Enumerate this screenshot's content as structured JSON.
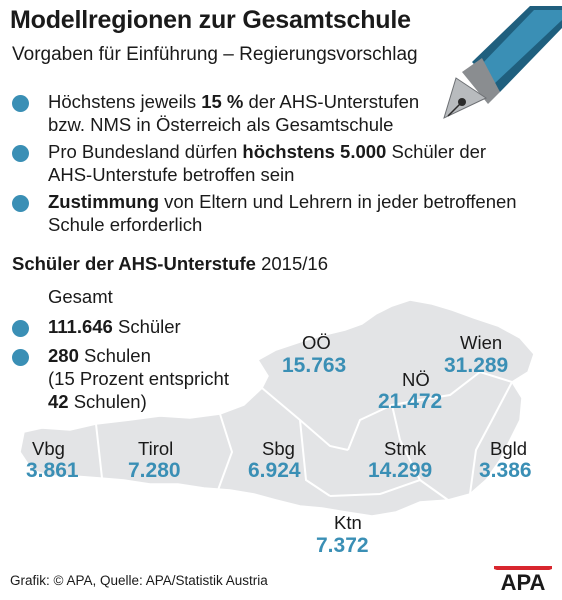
{
  "header": {
    "title": "Modellregionen zur Gesamtschule",
    "subtitle": "Vorgaben für Einführung – Regierungsvorschlag"
  },
  "rules": [
    {
      "pre": "Höchstens jeweils ",
      "bold": "15 %",
      "post": " der AHS-Unterstufen",
      "line2": "bzw. NMS in Österreich als Gesamtschule"
    },
    {
      "pre": "Pro Bundesland dürfen ",
      "bold": "höchstens 5.000",
      "post": " Schüler der",
      "line2": "AHS-Unterstufe betroffen sein"
    },
    {
      "pre": "",
      "bold": "Zustimmung",
      "post": " von Eltern und Lehrern in jeder betroffenen",
      "line2": "Schule erforderlich"
    }
  ],
  "stats": {
    "heading_bold": "Schüler der AHS-Unterstufe",
    "heading_rest": " 2015/16",
    "total_label": "Gesamt",
    "students_value": "111.646",
    "students_label": " Schüler",
    "schools_value": "280",
    "schools_label": " Schulen",
    "note_line1": "(15 Prozent entspricht",
    "note_bold": "42",
    "note_rest": " Schulen)"
  },
  "regions": [
    {
      "id": "vbg",
      "name": "Vbg",
      "value": "3.861"
    },
    {
      "id": "tirol",
      "name": "Tirol",
      "value": "7.280"
    },
    {
      "id": "sbg",
      "name": "Sbg",
      "value": "6.924"
    },
    {
      "id": "ooe",
      "name": "OÖ",
      "value": "15.763"
    },
    {
      "id": "noe",
      "name": "NÖ",
      "value": "21.472"
    },
    {
      "id": "wien",
      "name": "Wien",
      "value": "31.289"
    },
    {
      "id": "stmk",
      "name": "Stmk",
      "value": "14.299"
    },
    {
      "id": "bgld",
      "name": "Bgld",
      "value": "3.386"
    },
    {
      "id": "ktn",
      "name": "Ktn",
      "value": "7.372"
    }
  ],
  "footer": {
    "credit": "Grafik: © APA, Quelle: APA/Statistik Austria",
    "logo": "APA"
  },
  "colors": {
    "accent": "#3a8fb5",
    "map": "#e3e4e6",
    "logo_red": "#d8262e"
  }
}
